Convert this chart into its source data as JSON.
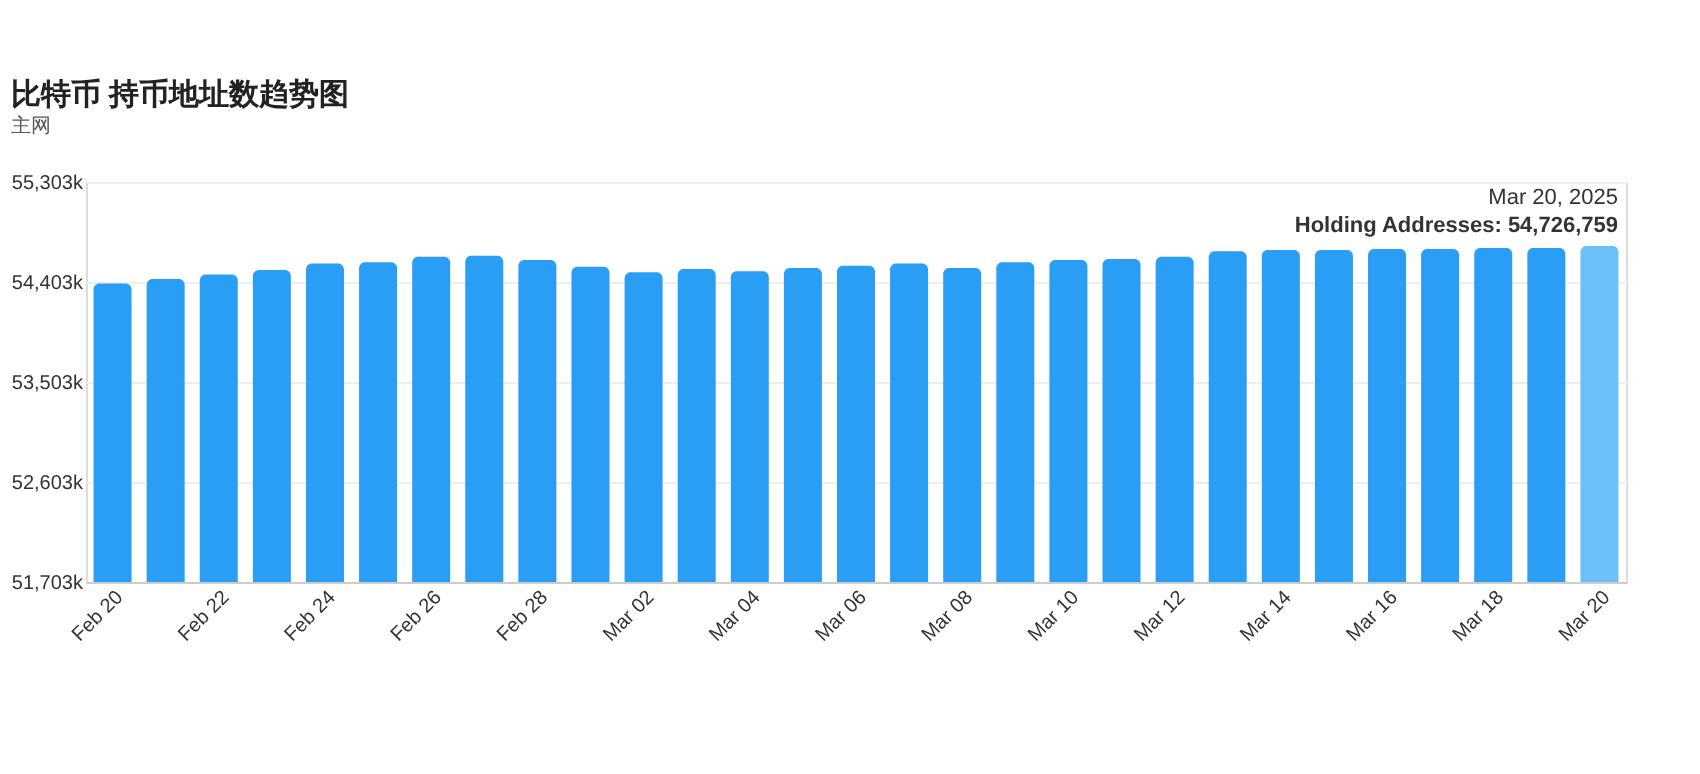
{
  "chart_data": {
    "type": "bar",
    "title": "比特币 持币地址数趋势图",
    "subtitle": "主网",
    "categories": [
      "Feb 20",
      null,
      "Feb 22",
      null,
      "Feb 24",
      null,
      "Feb 26",
      null,
      "Feb 28",
      null,
      "Mar 02",
      null,
      "Mar 04",
      null,
      "Mar 06",
      null,
      "Mar 08",
      null,
      "Mar 10",
      null,
      "Mar 12",
      null,
      "Mar 14",
      null,
      "Mar 16",
      null,
      "Mar 18",
      null,
      "Mar 20"
    ],
    "values": [
      54390,
      54430,
      54470,
      54510,
      54570,
      54580,
      54630,
      54640,
      54600,
      54540,
      54490,
      54520,
      54500,
      54530,
      54550,
      54570,
      54530,
      54580,
      54600,
      54610,
      54630,
      54680,
      54690,
      54690,
      54700,
      54700,
      54710,
      54710,
      54726.759
    ],
    "colors": [
      "#2a9df4",
      "#2a9df4",
      "#2a9df4",
      "#2a9df4",
      "#2a9df4",
      "#2a9df4",
      "#2a9df4",
      "#2a9df4",
      "#2a9df4",
      "#2a9df4",
      "#2a9df4",
      "#2a9df4",
      "#2a9df4",
      "#2a9df4",
      "#2a9df4",
      "#2a9df4",
      "#2a9df4",
      "#2a9df4",
      "#2a9df4",
      "#2a9df4",
      "#2a9df4",
      "#2a9df4",
      "#2a9df4",
      "#2a9df4",
      "#2a9df4",
      "#2a9df4",
      "#2a9df4",
      "#2a9df4",
      "#6cc0f7"
    ],
    "ylim": [
      51703,
      55303
    ],
    "yticks": [
      {
        "value": 51703,
        "label": "51,703k"
      },
      {
        "value": 52603,
        "label": "52,603k"
      },
      {
        "value": 53503,
        "label": "53,503k"
      },
      {
        "value": 54403,
        "label": "54,403k"
      },
      {
        "value": 55303,
        "label": "55,303k"
      }
    ],
    "grid": "y",
    "annotations": [
      "Mar 20, 2025",
      "Holding Addresses: 54,726,759"
    ]
  }
}
